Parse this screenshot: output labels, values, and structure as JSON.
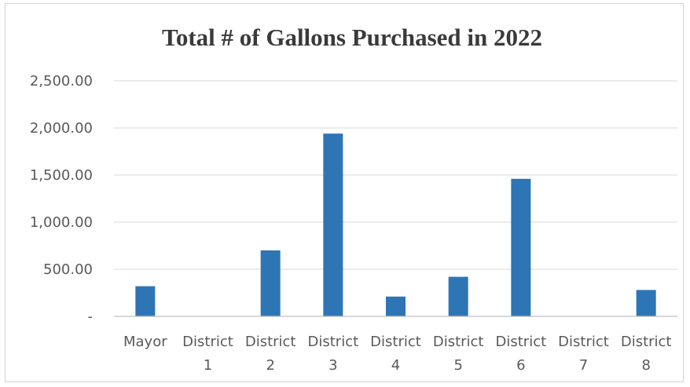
{
  "chart_data": {
    "type": "bar",
    "title": "Total # of Gallons Purchased in 2022",
    "xlabel": "",
    "ylabel": "",
    "categories": [
      [
        "Mayor"
      ],
      [
        "District",
        "1"
      ],
      [
        "District",
        "2"
      ],
      [
        "District",
        "3"
      ],
      [
        "District",
        "4"
      ],
      [
        "District",
        "5"
      ],
      [
        "District",
        "6"
      ],
      [
        "District",
        "7"
      ],
      [
        "District",
        "8"
      ]
    ],
    "values": [
      320,
      0,
      700,
      1940,
      210,
      420,
      1460,
      0,
      280
    ],
    "ylim": [
      0,
      2500
    ],
    "yticks": [
      {
        "value": 0,
        "label": "-"
      },
      {
        "value": 500,
        "label": "500.00"
      },
      {
        "value": 1000,
        "label": "1,000.00"
      },
      {
        "value": 1500,
        "label": "1,500.00"
      },
      {
        "value": 2000,
        "label": "2,000.00"
      },
      {
        "value": 2500,
        "label": "2,500.00"
      }
    ],
    "bar_color": "#2e75b6",
    "grid": true,
    "legend": "none"
  }
}
